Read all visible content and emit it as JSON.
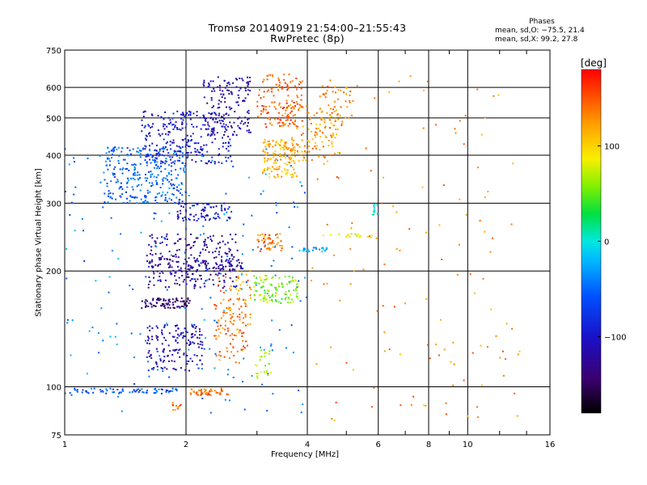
{
  "title": {
    "line1": "Tromsø 20140919 21:54:00–21:55:43",
    "line2": "RwPretec (8p)"
  },
  "phases": {
    "header": "Phases",
    "o_line": "mean, sd,O:  −75.5, 21.4",
    "x_line": "mean, sd,X:  99.2, 27.8"
  },
  "colorbar": {
    "label": "[deg]",
    "ticks": [
      "100",
      "0",
      "−100"
    ],
    "tick_values": [
      100,
      0,
      -100
    ],
    "range": [
      -180,
      180
    ]
  },
  "chart_data": {
    "type": "scatter",
    "xlabel": "Frequency [MHz]",
    "ylabel": "Stationary phase Virtual Height [km]",
    "x_scale": "log",
    "y_scale": "log",
    "xlim": [
      1,
      16
    ],
    "ylim": [
      75,
      750
    ],
    "x_ticks": [
      1,
      2,
      4,
      6,
      8,
      10,
      16
    ],
    "x_tick_labels": [
      "1",
      "2",
      "4",
      "6",
      "8",
      "10",
      "16"
    ],
    "y_ticks": [
      75,
      100,
      200,
      300,
      400,
      500,
      600,
      750
    ],
    "y_tick_labels": [
      "75",
      "100",
      "200",
      "300",
      "400",
      "500",
      "600",
      "750"
    ],
    "grid": true,
    "color_by": "phase_deg",
    "clusters": [
      {
        "x": [
          1.0,
          1.9
        ],
        "y": [
          96,
          99
        ],
        "phase": -60,
        "n": 70
      },
      {
        "x": [
          2.05,
          2.55
        ],
        "y": [
          95,
          99
        ],
        "phase": 140,
        "n": 50
      },
      {
        "x": [
          1.85,
          1.95
        ],
        "y": [
          87,
          91
        ],
        "phase": 140,
        "n": 10
      },
      {
        "x": [
          1.25,
          2.0
        ],
        "y": [
          300,
          420
        ],
        "phase": -55,
        "n": 300
      },
      {
        "x": [
          1.55,
          2.6
        ],
        "y": [
          380,
          520
        ],
        "phase": -95,
        "n": 250
      },
      {
        "x": [
          2.2,
          2.9
        ],
        "y": [
          450,
          640
        ],
        "phase": -115,
        "n": 150
      },
      {
        "x": [
          1.9,
          2.6
        ],
        "y": [
          270,
          300
        ],
        "phase": -100,
        "n": 80
      },
      {
        "x": [
          1.55,
          2.05
        ],
        "y": [
          160,
          170
        ],
        "phase": -140,
        "n": 80
      },
      {
        "x": [
          1.6,
          2.7
        ],
        "y": [
          180,
          250
        ],
        "phase": -120,
        "n": 250
      },
      {
        "x": [
          1.9,
          2.8
        ],
        "y": [
          200,
          215
        ],
        "phase": -115,
        "n": 60
      },
      {
        "x": [
          1.6,
          2.2
        ],
        "y": [
          110,
          145
        ],
        "phase": -110,
        "n": 150
      },
      {
        "x": [
          2.35,
          2.85
        ],
        "y": [
          115,
          170
        ],
        "phase": 140,
        "n": 80
      },
      {
        "x": [
          2.4,
          2.9
        ],
        "y": [
          140,
          200
        ],
        "phase": 130,
        "n": 60
      },
      {
        "x": [
          2.95,
          3.8
        ],
        "y": [
          165,
          195
        ],
        "phase": 60,
        "n": 110
      },
      {
        "x": [
          2.95,
          3.25
        ],
        "y": [
          105,
          125
        ],
        "phase": 70,
        "n": 25
      },
      {
        "x": [
          3.0,
          3.5
        ],
        "y": [
          225,
          250
        ],
        "phase": 140,
        "n": 50
      },
      {
        "x": [
          3.8,
          4.5
        ],
        "y": [
          224,
          230
        ],
        "phase": -20,
        "n": 25
      },
      {
        "x": [
          4.3,
          5.8
        ],
        "y": [
          245,
          250
        ],
        "phase": 80,
        "n": 15
      },
      {
        "x": [
          3.1,
          3.8
        ],
        "y": [
          350,
          440
        ],
        "phase": 115,
        "n": 140
      },
      {
        "x": [
          3.5,
          4.8
        ],
        "y": [
          380,
          540
        ],
        "phase": 125,
        "n": 120
      },
      {
        "x": [
          3.0,
          3.9
        ],
        "y": [
          470,
          650
        ],
        "phase": 150,
        "n": 130
      },
      {
        "x": [
          4.3,
          5.2
        ],
        "y": [
          450,
          610
        ],
        "phase": 130,
        "n": 60
      },
      {
        "x": [
          1.0,
          4.0
        ],
        "y": [
          85,
          420
        ],
        "phase": -40,
        "n": 200
      },
      {
        "x": [
          4.0,
          14.0
        ],
        "y": [
          80,
          660
        ],
        "phase": 130,
        "n": 130
      },
      {
        "x": [
          5.8,
          6.0
        ],
        "y": [
          280,
          300
        ],
        "phase": -10,
        "n": 12
      }
    ]
  }
}
